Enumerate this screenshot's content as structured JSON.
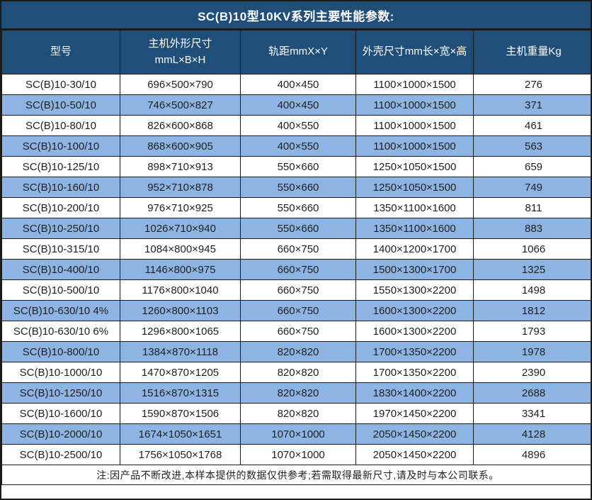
{
  "title": "SC(B)10型10KV系列主要性能参数:",
  "table": {
    "columns": [
      {
        "label": "型号"
      },
      {
        "label": "主机外形尺寸\nmmL×B×H"
      },
      {
        "label": "轨距mmX×Y"
      },
      {
        "label": "外壳尺寸mm长×宽×高"
      },
      {
        "label": "主机重量Kg"
      }
    ],
    "rows": [
      [
        "SC(B)10-30/10",
        "696×500×790",
        "400×450",
        "1100×1000×1500",
        "276"
      ],
      [
        "SC(B)10-50/10",
        "746×500×827",
        "400×450",
        "1100×1000×1500",
        "371"
      ],
      [
        "SC(B)10-80/10",
        "826×600×868",
        "400×550",
        "1100×1000×1500",
        "461"
      ],
      [
        "SC(B)10-100/10",
        "868×600×905",
        "400×550",
        "1100×1000×1500",
        "563"
      ],
      [
        "SC(B)10-125/10",
        "898×710×913",
        "550×660",
        "1250×1050×1500",
        "659"
      ],
      [
        "SC(B)10-160/10",
        "952×710×878",
        "550×660",
        "1250×1050×1500",
        "749"
      ],
      [
        "SC(B)10-200/10",
        "976×710×925",
        "550×660",
        "1350×1100×1600",
        "811"
      ],
      [
        "SC(B)10-250/10",
        "1026×710×940",
        "550×660",
        "1350×1100×1600",
        "883"
      ],
      [
        "SC(B)10-315/10",
        "1084×800×945",
        "660×750",
        "1400×1200×1700",
        "1066"
      ],
      [
        "SC(B)10-400/10",
        "1146×800×975",
        "660×750",
        "1500×1300×1700",
        "1325"
      ],
      [
        "SC(B)10-500/10",
        "1176×800×1040",
        "660×750",
        "1550×1300×2200",
        "1498"
      ],
      [
        "SC(B)10-630/10 4%",
        "1260×800×1103",
        "660×750",
        "1600×1300×2200",
        "1812"
      ],
      [
        "SC(B)10-630/10 6%",
        "1296×800×1065",
        "660×750",
        "1600×1300×2200",
        "1793"
      ],
      [
        "SC(B)10-800/10",
        "1384×870×1118",
        "820×820",
        "1700×1350×2200",
        "1978"
      ],
      [
        "SC(B)10-1000/10",
        "1470×870×1205",
        "820×820",
        "1700×1350×2200",
        "2390"
      ],
      [
        "SC(B)10-1250/10",
        "1516×870×1315",
        "820×820",
        "1830×1400×2200",
        "2688"
      ],
      [
        "SC(B)10-1600/10",
        "1590×870×1506",
        "820×820",
        "1970×1450×2200",
        "3341"
      ],
      [
        "SC(B)10-2000/10",
        "1674×1050×1651",
        "1070×1000",
        "2050×1450×2200",
        "4128"
      ],
      [
        "SC(B)10-2500/10",
        "1756×1050×1768",
        "1070×1000",
        "2050×1450×2200",
        "4896"
      ]
    ]
  },
  "note": "注:因产品不断改进,本样本提供的数据仅供参考;若需取得最新尺寸,请及时与本公司联系。",
  "colors": {
    "header_bg": "#1F4E79",
    "stripe_bg": "#8DB4E2",
    "row_bg": "#FFFFFF",
    "border": "#1A1A1A",
    "header_text": "#FFFFFF",
    "body_text": "#1F1F1F"
  }
}
